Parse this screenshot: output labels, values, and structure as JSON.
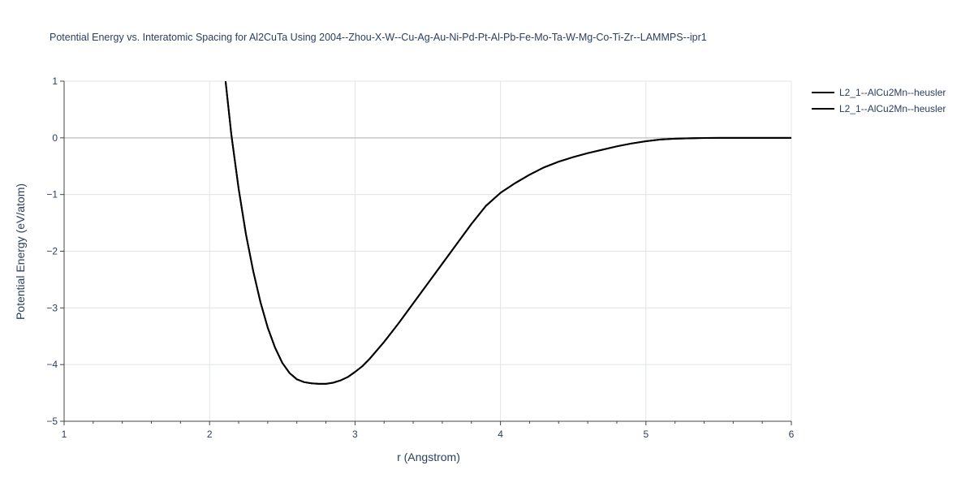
{
  "chart_data": {
    "type": "line",
    "title": "Potential Energy vs. Interatomic Spacing for Al2CuTa Using 2004--Zhou-X-W--Cu-Ag-Au-Ni-Pd-Pt-Al-Pb-Fe-Mo-Ta-W-Mg-Co-Ti-Zr--LAMMPS--ipr1",
    "xlabel": "r (Angstrom)",
    "ylabel": "Potential Energy (eV/atom)",
    "xlim": [
      1,
      6
    ],
    "ylim": [
      -5,
      1
    ],
    "x_ticks": [
      1,
      2,
      3,
      4,
      5,
      6
    ],
    "x_tick_labels": [
      "1",
      "2",
      "3",
      "4",
      "5",
      "6"
    ],
    "y_ticks": [
      1,
      0,
      -1,
      -2,
      -3,
      -4,
      -5
    ],
    "y_tick_labels": [
      "1",
      "0",
      "−1",
      "−2",
      "−3",
      "−4",
      "−5"
    ],
    "grid": true,
    "legend_position": "top-right",
    "series": [
      {
        "name": "L2_1--AlCu2Mn--heusler",
        "color": "#000000",
        "x": [
          2.11,
          2.15,
          2.2,
          2.25,
          2.3,
          2.35,
          2.4,
          2.45,
          2.5,
          2.55,
          2.6,
          2.65,
          2.7,
          2.75,
          2.8,
          2.85,
          2.9,
          2.95,
          3.0,
          3.05,
          3.1,
          3.2,
          3.3,
          3.4,
          3.5,
          3.6,
          3.7,
          3.8,
          3.9,
          4.0,
          4.1,
          4.2,
          4.3,
          4.4,
          4.5,
          4.6,
          4.7,
          4.8,
          4.9,
          5.0,
          5.1,
          5.2,
          5.3,
          5.4,
          5.5,
          5.6,
          5.7,
          5.8,
          5.9,
          6.0
        ],
        "y": [
          1.0,
          0.05,
          -0.9,
          -1.7,
          -2.35,
          -2.9,
          -3.35,
          -3.7,
          -3.97,
          -4.15,
          -4.26,
          -4.31,
          -4.33,
          -4.34,
          -4.34,
          -4.32,
          -4.28,
          -4.22,
          -4.13,
          -4.03,
          -3.9,
          -3.6,
          -3.27,
          -2.92,
          -2.57,
          -2.22,
          -1.87,
          -1.52,
          -1.2,
          -0.97,
          -0.8,
          -0.65,
          -0.52,
          -0.42,
          -0.34,
          -0.27,
          -0.21,
          -0.15,
          -0.1,
          -0.06,
          -0.03,
          -0.015,
          -0.007,
          -0.003,
          -0.001,
          0.0,
          0.0,
          0.0,
          0.0,
          0.0
        ]
      },
      {
        "name": "L2_1--AlCu2Mn--heusler",
        "color": "#000000",
        "x": [
          2.11,
          2.15,
          2.2,
          2.25,
          2.3,
          2.35,
          2.4,
          2.45,
          2.5,
          2.55,
          2.6,
          2.65,
          2.7,
          2.75,
          2.8,
          2.85,
          2.9,
          2.95,
          3.0,
          3.05,
          3.1,
          3.2,
          3.3,
          3.4,
          3.5,
          3.6,
          3.7,
          3.8,
          3.9,
          4.0,
          4.1,
          4.2,
          4.3,
          4.4,
          4.5,
          4.6,
          4.7,
          4.8,
          4.9,
          5.0,
          5.1,
          5.2,
          5.3,
          5.4,
          5.5,
          5.6,
          5.7,
          5.8,
          5.9,
          6.0
        ],
        "y": [
          1.0,
          0.05,
          -0.9,
          -1.7,
          -2.35,
          -2.9,
          -3.35,
          -3.7,
          -3.97,
          -4.15,
          -4.26,
          -4.31,
          -4.33,
          -4.34,
          -4.34,
          -4.32,
          -4.28,
          -4.22,
          -4.13,
          -4.03,
          -3.9,
          -3.6,
          -3.27,
          -2.92,
          -2.57,
          -2.22,
          -1.87,
          -1.52,
          -1.2,
          -0.97,
          -0.8,
          -0.65,
          -0.52,
          -0.42,
          -0.34,
          -0.27,
          -0.21,
          -0.15,
          -0.1,
          -0.06,
          -0.03,
          -0.015,
          -0.007,
          -0.003,
          -0.001,
          0.0,
          0.0,
          0.0,
          0.0,
          0.0
        ]
      }
    ]
  }
}
